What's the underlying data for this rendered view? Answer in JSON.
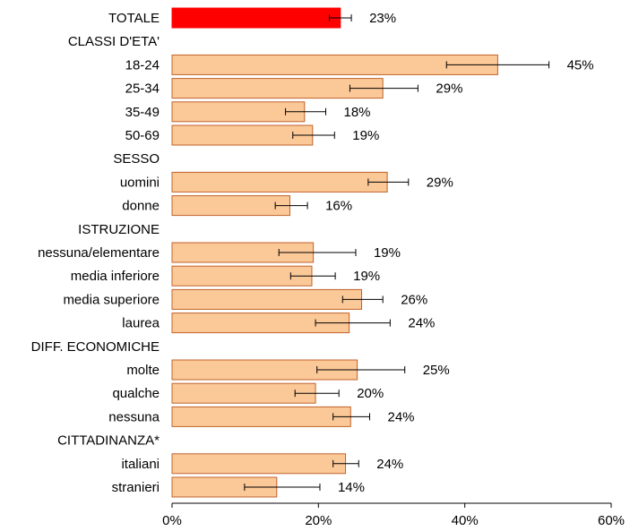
{
  "chart_data": {
    "type": "bar",
    "orientation": "horizontal",
    "xlim": [
      0,
      60
    ],
    "x_ticks": [
      0,
      20,
      40,
      60
    ],
    "x_tick_labels": [
      "0%",
      "20%",
      "40%",
      "60%"
    ],
    "grid": false,
    "colors": {
      "total": "#ff0000",
      "bar": "#fbc898",
      "bar_border": "#c0622b",
      "axis": "#000000"
    },
    "rows": [
      {
        "kind": "bar",
        "label": "TOTALE",
        "value": 23,
        "err_low": 21.5,
        "err_high": 24.5,
        "value_label": "23%",
        "highlight": true
      },
      {
        "kind": "group",
        "label": "CLASSI D'ETA'"
      },
      {
        "kind": "bar",
        "label": "18-24",
        "value": 44.5,
        "err_low": 37.5,
        "err_high": 51.5,
        "value_label": "45%"
      },
      {
        "kind": "bar",
        "label": "25-34",
        "value": 28.8,
        "err_low": 24.3,
        "err_high": 33.6,
        "value_label": "29%"
      },
      {
        "kind": "bar",
        "label": "35-49",
        "value": 18.1,
        "err_low": 15.5,
        "err_high": 21,
        "value_label": "18%"
      },
      {
        "kind": "bar",
        "label": "50-69",
        "value": 19.2,
        "err_low": 16.5,
        "err_high": 22.2,
        "value_label": "19%"
      },
      {
        "kind": "group",
        "label": "SESSO"
      },
      {
        "kind": "bar",
        "label": "uomini",
        "value": 29.4,
        "err_low": 26.8,
        "err_high": 32.3,
        "value_label": "29%"
      },
      {
        "kind": "bar",
        "label": "donne",
        "value": 16.1,
        "err_low": 14.1,
        "err_high": 18.5,
        "value_label": "16%"
      },
      {
        "kind": "group",
        "label": "ISTRUZIONE"
      },
      {
        "kind": "bar",
        "label": "nessuna/elementare",
        "value": 19.3,
        "err_low": 14.6,
        "err_high": 25.1,
        "value_label": "19%"
      },
      {
        "kind": "bar",
        "label": "media inferiore",
        "value": 19.1,
        "err_low": 16.2,
        "err_high": 22.3,
        "value_label": "19%"
      },
      {
        "kind": "bar",
        "label": "media superiore",
        "value": 25.9,
        "err_low": 23.3,
        "err_high": 28.8,
        "value_label": "26%"
      },
      {
        "kind": "bar",
        "label": "laurea",
        "value": 24.2,
        "err_low": 19.6,
        "err_high": 29.8,
        "value_label": "24%"
      },
      {
        "kind": "group",
        "label": "DIFF. ECONOMICHE"
      },
      {
        "kind": "bar",
        "label": "molte",
        "value": 25.3,
        "err_low": 19.8,
        "err_high": 31.8,
        "value_label": "25%"
      },
      {
        "kind": "bar",
        "label": "qualche",
        "value": 19.6,
        "err_low": 16.8,
        "err_high": 22.8,
        "value_label": "20%"
      },
      {
        "kind": "bar",
        "label": "nessuna",
        "value": 24.4,
        "err_low": 22,
        "err_high": 27,
        "value_label": "24%"
      },
      {
        "kind": "group",
        "label": "CITTADINANZA*"
      },
      {
        "kind": "bar",
        "label": "italiani",
        "value": 23.7,
        "err_low": 22,
        "err_high": 25.5,
        "value_label": "24%"
      },
      {
        "kind": "bar",
        "label": "stranieri",
        "value": 14.3,
        "err_low": 9.9,
        "err_high": 20.2,
        "value_label": "14%"
      }
    ]
  }
}
